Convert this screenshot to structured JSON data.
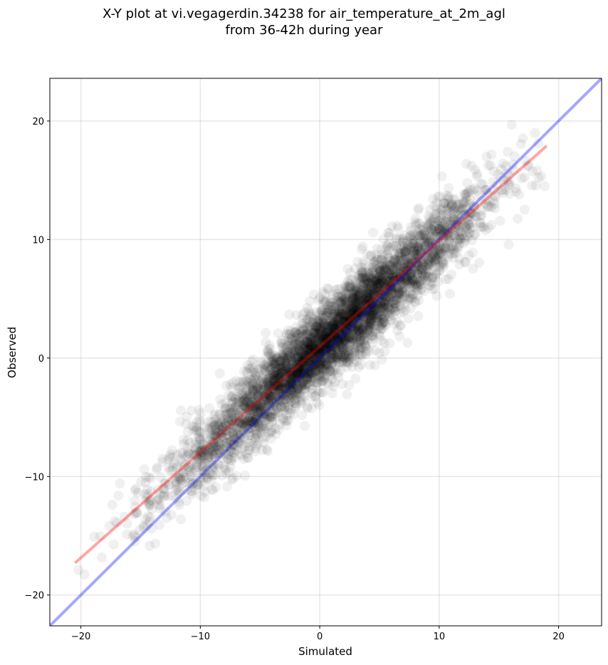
{
  "chart_data": {
    "type": "scatter",
    "title": [
      "X-Y plot at vi.vegagerdin.34238 for air_temperature_at_2m_agl",
      "from 36-42h during year"
    ],
    "xlabel": "Simulated",
    "ylabel": "Observed",
    "xlim": [
      -22.6,
      23.6
    ],
    "ylim": [
      -22.6,
      23.6
    ],
    "x_ticks": [
      -20,
      -10,
      0,
      10,
      20
    ],
    "y_ticks": [
      -20,
      -10,
      0,
      10,
      20
    ],
    "x_tick_labels": [
      "−20",
      "−10",
      "0",
      "10",
      "20"
    ],
    "y_tick_labels": [
      "−20",
      "−10",
      "0",
      "10",
      "20"
    ],
    "grid": true,
    "legend": "none",
    "point_color": "#000000",
    "point_alpha": 0.06,
    "reference_lines": [
      {
        "kind": "identity",
        "color": "#0000ff",
        "x": [
          -22.6,
          23.6
        ],
        "y": [
          -22.6,
          23.6
        ]
      },
      {
        "kind": "regression",
        "color": "#ff0000",
        "x": [
          -20.5,
          19.0
        ],
        "y": [
          -17.3,
          17.9
        ]
      }
    ],
    "cloud": {
      "n_points": 4500,
      "x_mean": 1.0,
      "x_std": 6.2,
      "x_range": [
        -20.5,
        19.0
      ],
      "slope": 0.89,
      "intercept": 0.9,
      "residual_std": 1.75
    }
  }
}
